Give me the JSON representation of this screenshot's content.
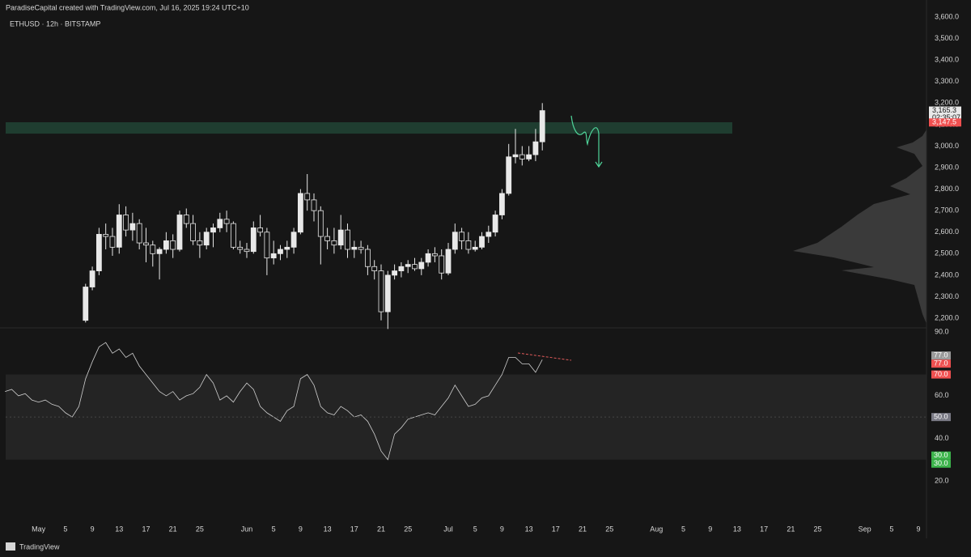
{
  "header": {
    "credit": "ParadiseCapital created with TradingView.com, Jul 16, 2025 19:24 UTC+10",
    "brand": "TradingView"
  },
  "chart_data": [
    {
      "type": "candlestick",
      "title": "ETHUSD · 12h · BITSTAMP",
      "x": [
        7,
        8,
        9,
        10,
        11,
        12,
        13,
        14,
        15,
        16,
        17,
        18,
        19,
        20,
        21,
        22,
        23,
        24,
        25,
        26,
        27,
        28,
        29,
        30,
        31,
        32,
        33,
        34,
        35,
        36,
        37,
        38,
        39,
        40,
        41,
        42,
        43,
        44,
        45,
        46,
        47,
        48,
        49,
        50,
        51,
        52,
        53,
        54,
        55,
        56,
        57,
        58,
        59,
        60,
        61,
        62,
        63,
        64,
        65,
        66,
        67,
        68,
        69,
        70,
        71,
        72,
        73,
        74,
        75
      ],
      "open": [
        2190,
        2345,
        2420,
        2590,
        2580,
        2530,
        2680,
        2610,
        2640,
        2550,
        2540,
        2500,
        2520,
        2560,
        2520,
        2680,
        2640,
        2560,
        2540,
        2600,
        2620,
        2660,
        2640,
        2530,
        2520,
        2510,
        2620,
        2600,
        2480,
        2500,
        2520,
        2530,
        2600,
        2780,
        2750,
        2700,
        2580,
        2560,
        2540,
        2610,
        2520,
        2530,
        2520,
        2440,
        2420,
        2230,
        2400,
        2420,
        2440,
        2450,
        2430,
        2460,
        2500,
        2490,
        2410,
        2520,
        2600,
        2560,
        2520,
        2530,
        2580,
        2600,
        2680,
        2780,
        2950,
        2960,
        2940,
        2960,
        3020
      ],
      "high": [
        2360,
        2440,
        2620,
        2640,
        2620,
        2730,
        2720,
        2690,
        2660,
        2620,
        2560,
        2530,
        2600,
        2590,
        2700,
        2710,
        2680,
        2600,
        2620,
        2640,
        2690,
        2700,
        2650,
        2560,
        2550,
        2650,
        2680,
        2620,
        2560,
        2540,
        2560,
        2620,
        2800,
        2870,
        2780,
        2720,
        2620,
        2620,
        2680,
        2640,
        2560,
        2560,
        2540,
        2470,
        2450,
        2420,
        2450,
        2460,
        2470,
        2480,
        2480,
        2520,
        2530,
        2520,
        2550,
        2640,
        2620,
        2600,
        2560,
        2600,
        2630,
        2700,
        2800,
        3010,
        3080,
        3000,
        3000,
        3080,
        3200
      ],
      "low": [
        2180,
        2330,
        2400,
        2520,
        2490,
        2500,
        2580,
        2560,
        2520,
        2460,
        2440,
        2380,
        2500,
        2480,
        2510,
        2620,
        2540,
        2480,
        2520,
        2530,
        2600,
        2600,
        2520,
        2500,
        2480,
        2500,
        2580,
        2400,
        2450,
        2470,
        2480,
        2500,
        2590,
        2700,
        2650,
        2450,
        2520,
        2500,
        2520,
        2480,
        2480,
        2500,
        2400,
        2380,
        2190,
        2150,
        2380,
        2390,
        2410,
        2420,
        2400,
        2440,
        2460,
        2380,
        2400,
        2500,
        2520,
        2500,
        2510,
        2520,
        2550,
        2580,
        2660,
        2770,
        2920,
        2910,
        2930,
        2930,
        2980
      ],
      "close": [
        2345,
        2420,
        2590,
        2580,
        2530,
        2680,
        2610,
        2640,
        2550,
        2540,
        2500,
        2520,
        2560,
        2520,
        2680,
        2640,
        2560,
        2540,
        2600,
        2620,
        2660,
        2640,
        2530,
        2520,
        2510,
        2620,
        2600,
        2480,
        2500,
        2520,
        2530,
        2600,
        2780,
        2750,
        2700,
        2580,
        2560,
        2540,
        2610,
        2520,
        2530,
        2520,
        2440,
        2420,
        2230,
        2400,
        2420,
        2440,
        2450,
        2430,
        2460,
        2500,
        2490,
        2410,
        2520,
        2600,
        2560,
        2520,
        2530,
        2580,
        2600,
        2680,
        2780,
        2950,
        2960,
        2940,
        2960,
        3020,
        3165
      ],
      "up_color": "#e8e8e8",
      "down_color": "#161616",
      "zone": [
        3058,
        3111
      ],
      "zone_color": "#1f3d30",
      "last_price": {
        "value": 3165.3,
        "label": "3,165.3"
      },
      "countdown": "02:35:07",
      "level_label": {
        "value": 3147.5,
        "label": "3,147.5"
      },
      "xlim": [
        -4.9,
        132.2
      ],
      "ylim": [
        2155,
        3634
      ],
      "yticks": [
        {
          "value": 2200,
          "label": "2,200.0"
        },
        {
          "value": 2300,
          "label": "2,300.0"
        },
        {
          "value": 2400,
          "label": "2,400.0"
        },
        {
          "value": 2500,
          "label": "2,500.0"
        },
        {
          "value": 2600,
          "label": "2,600.0"
        },
        {
          "value": 2700,
          "label": "2,700.0"
        },
        {
          "value": 2800,
          "label": "2,800.0"
        },
        {
          "value": 2900,
          "label": "2,900.0"
        },
        {
          "value": 3000,
          "label": "3,000.0"
        },
        {
          "value": 3100,
          "label": "3,100.0"
        },
        {
          "value": 3200,
          "label": "3,200.0"
        },
        {
          "value": 3300,
          "label": "3,300.0"
        },
        {
          "value": 3400,
          "label": "3,400.0"
        },
        {
          "value": 3500,
          "label": "3,500.0"
        },
        {
          "value": 3600,
          "label": "3,600.0"
        }
      ],
      "xticks": [
        {
          "value": 0,
          "label": "May"
        },
        {
          "value": 4,
          "label": "5"
        },
        {
          "value": 8,
          "label": "9"
        },
        {
          "value": 12,
          "label": "13"
        },
        {
          "value": 16,
          "label": "17"
        },
        {
          "value": 20,
          "label": "21"
        },
        {
          "value": 24,
          "label": "25"
        },
        {
          "value": 31,
          "label": "Jun"
        },
        {
          "value": 35,
          "label": "5"
        },
        {
          "value": 39,
          "label": "9"
        },
        {
          "value": 43,
          "label": "13"
        },
        {
          "value": 47,
          "label": "17"
        },
        {
          "value": 51,
          "label": "21"
        },
        {
          "value": 55,
          "label": "25"
        },
        {
          "value": 61,
          "label": "Jul"
        },
        {
          "value": 65,
          "label": "5"
        },
        {
          "value": 69,
          "label": "9"
        },
        {
          "value": 73,
          "label": "13"
        },
        {
          "value": 77,
          "label": "17"
        },
        {
          "value": 81,
          "label": "21"
        },
        {
          "value": 85,
          "label": "25"
        },
        {
          "value": 92,
          "label": "Aug"
        },
        {
          "value": 96,
          "label": "5"
        },
        {
          "value": 100,
          "label": "9"
        },
        {
          "value": 104,
          "label": "13"
        },
        {
          "value": 108,
          "label": "17"
        },
        {
          "value": 112,
          "label": "21"
        },
        {
          "value": 116,
          "label": "25"
        },
        {
          "value": 123,
          "label": "Sep"
        },
        {
          "value": 127,
          "label": "5"
        },
        {
          "value": 131,
          "label": "9"
        }
      ]
    },
    {
      "type": "line",
      "x": [
        -5,
        -4,
        -3,
        -2,
        -1,
        0,
        1,
        2,
        3,
        4,
        5,
        6,
        7,
        8,
        9,
        10,
        11,
        12,
        13,
        14,
        15,
        16,
        17,
        18,
        19,
        20,
        21,
        22,
        23,
        24,
        25,
        26,
        27,
        28,
        29,
        30,
        31,
        32,
        33,
        34,
        35,
        36,
        37,
        38,
        39,
        40,
        41,
        42,
        43,
        44,
        45,
        46,
        47,
        48,
        49,
        50,
        51,
        52,
        53,
        54,
        55,
        56,
        57,
        58,
        59,
        60,
        61,
        62,
        63,
        64,
        65,
        66,
        67,
        68,
        69,
        70,
        71,
        72,
        73,
        74,
        75
      ],
      "values": [
        62,
        63,
        60,
        61,
        58,
        57,
        58,
        56,
        55,
        52,
        50,
        55,
        68,
        76,
        83,
        85,
        80,
        82,
        78,
        80,
        74,
        70,
        66,
        62,
        60,
        62,
        58,
        60,
        61,
        64,
        70,
        66,
        58,
        60,
        57,
        62,
        66,
        63,
        55,
        52,
        50,
        48,
        53,
        55,
        68,
        70,
        65,
        55,
        52,
        51,
        55,
        53,
        50,
        51,
        48,
        42,
        34,
        30,
        42,
        45,
        49,
        50,
        51,
        52,
        51,
        55,
        59,
        65,
        60,
        55,
        56,
        59,
        60,
        65,
        70,
        78,
        78,
        75,
        75,
        71,
        77
      ],
      "color": "#cfcfcf",
      "band": [
        30,
        70
      ],
      "band_color": "#242424",
      "ylim": [
        2.5,
        91.9
      ],
      "yticks": [
        {
          "value": 20,
          "label": "20.0"
        },
        {
          "value": 40,
          "label": "40.0"
        },
        {
          "value": 60,
          "label": "60.0"
        },
        {
          "value": 90,
          "label": "90.0"
        }
      ],
      "badges": [
        {
          "value": 77,
          "label": "77.0",
          "color": "#9a9a9a"
        },
        {
          "value": 77,
          "label": "77.0",
          "color": "#f05050"
        },
        {
          "value": 70,
          "label": "70.0",
          "color": "#f05050"
        },
        {
          "value": 50,
          "label": "50.0",
          "color": "#7a7a85"
        },
        {
          "value": 30,
          "label": "30.0",
          "color": "#3cb44b"
        },
        {
          "value": 30,
          "label": "30.0",
          "color": "#3cb44b"
        }
      ]
    }
  ]
}
